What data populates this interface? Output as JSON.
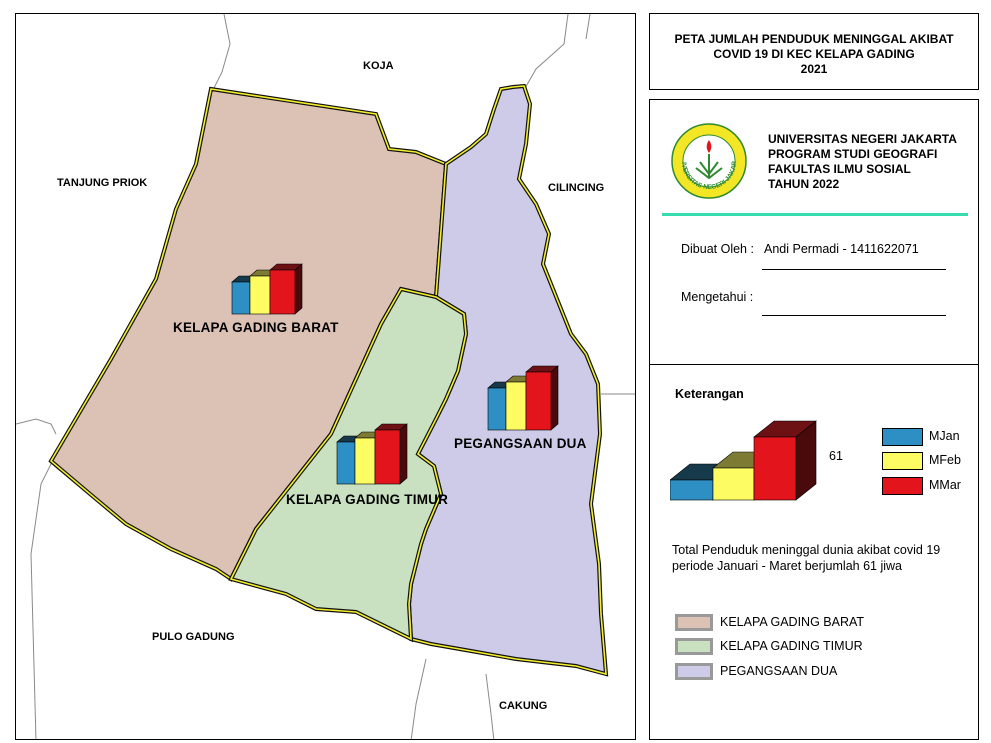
{
  "title": {
    "line1": "PETA JUMLAH PENDUDUK MENINGGAL AKIBAT",
    "line2": "COVID 19 DI KEC KELAPA GADING",
    "line3": "2021"
  },
  "institution": {
    "line1": "UNIVERSITAS NEGERI JAKARTA",
    "line2": "PROGRAM STUDI GEOGRAFI",
    "line3": "FAKULTAS ILMU SOSIAL",
    "line4": "TAHUN 2022",
    "logo_text": "UNIVERSITAS NEGERI JAKARTA"
  },
  "credits": {
    "made_by_label": "Dibuat Oleh :",
    "made_by_value": "Andi Permadi - 1411622071",
    "approved_label": "Mengetahui :"
  },
  "legend": {
    "heading": "Keterangan",
    "chart_max": "61",
    "items": [
      {
        "label": "MJan",
        "color": "#2e8fc4"
      },
      {
        "label": "MFeb",
        "color": "#fdfc63"
      },
      {
        "label": "MMar",
        "color": "#e3141b"
      }
    ],
    "total_note_line1": "Total Penduduk meninggal dunia akibat covid 19",
    "total_note_line2": "periode Januari - Maret berjumlah 61 jiwa",
    "districts": [
      {
        "label": "KELAPA GADING BARAT",
        "color": "#dcc2b5"
      },
      {
        "label": "KELAPA GADING TIMUR",
        "color": "#c9e1c0"
      },
      {
        "label": "PEGANGSAAN DUA",
        "color": "#cdcbe8"
      }
    ]
  },
  "map": {
    "neighbors": {
      "koja": "KOJA",
      "tanjung_priok": "TANJUNG PRIOK",
      "cilincing": "CILINCING",
      "pulo_gadung": "PULO GADUNG",
      "cakung": "CAKUNG"
    },
    "district_labels": {
      "barat": "KELAPA GADING BARAT",
      "timur": "KELAPA GADING TIMUR",
      "pegangsaan": "PEGANGSAAN DUA"
    }
  }
}
